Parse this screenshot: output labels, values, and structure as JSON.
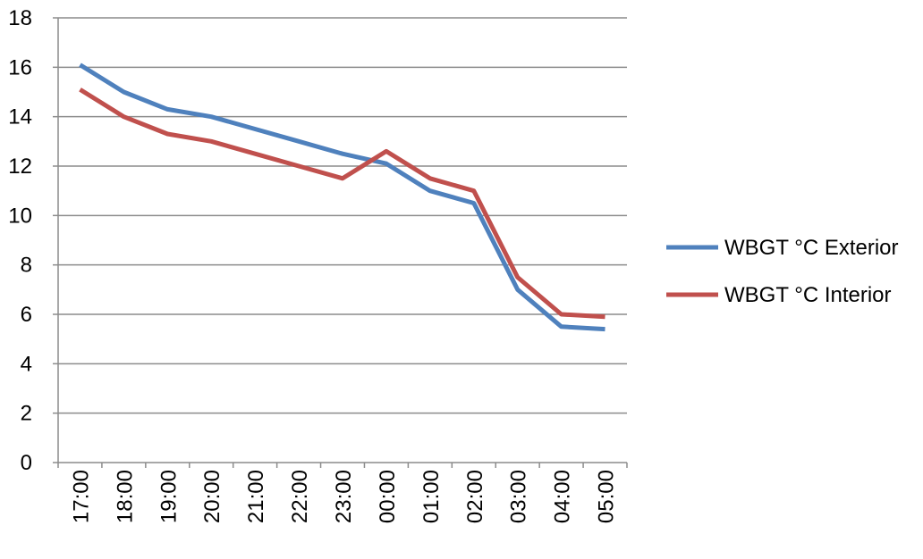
{
  "chart_data": {
    "type": "line",
    "title": "",
    "xlabel": "",
    "ylabel": "",
    "categories": [
      "17:00",
      "18:00",
      "19:00",
      "20:00",
      "21:00",
      "22:00",
      "23:00",
      "00:00",
      "01:00",
      "02:00",
      "03:00",
      "04:00",
      "05:00"
    ],
    "yticks": [
      "0",
      "2",
      "4",
      "6",
      "8",
      "10",
      "12",
      "14",
      "16",
      "18"
    ],
    "ylim": [
      0,
      18
    ],
    "grid": true,
    "legend_position": "right",
    "series": [
      {
        "name": "WBGT °C Exterior",
        "color": "#4f81bd",
        "values": [
          16.1,
          15.0,
          14.3,
          14.0,
          13.5,
          13.0,
          12.5,
          12.1,
          11.0,
          10.5,
          7.0,
          5.5,
          5.4
        ]
      },
      {
        "name": "WBGT °C Interior",
        "color": "#c0504d",
        "values": [
          15.1,
          14.0,
          13.3,
          13.0,
          12.5,
          12.0,
          11.5,
          12.6,
          11.5,
          11.0,
          7.5,
          6.0,
          5.9
        ]
      }
    ]
  }
}
